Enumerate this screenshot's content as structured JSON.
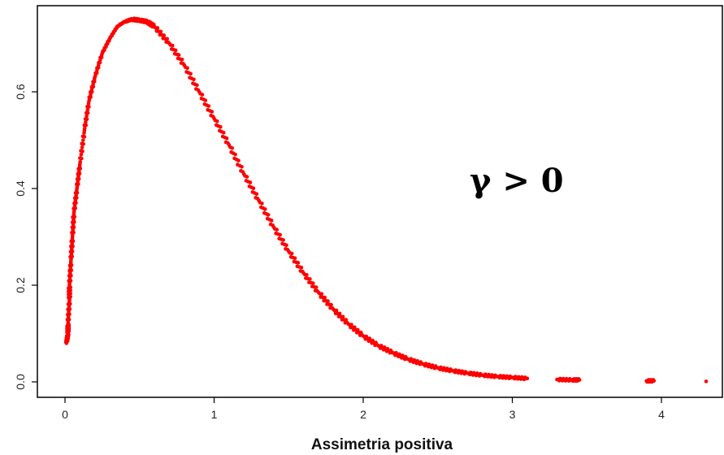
{
  "chart_data": {
    "type": "scatter",
    "title": "",
    "xlabel": "Assimetria positiva",
    "ylabel": "",
    "xlim": [
      -0.2,
      4.4
    ],
    "ylim": [
      -0.03,
      0.78
    ],
    "x_ticks": [
      0,
      1,
      2,
      3,
      4
    ],
    "x_tick_labels": [
      "0",
      "1",
      "2",
      "3",
      "4"
    ],
    "y_ticks": [
      0.0,
      0.2,
      0.4,
      0.6
    ],
    "y_tick_labels": [
      "0.0",
      "0.2",
      "0.4",
      "0.6"
    ],
    "annotation": "γ > 0",
    "grid": false,
    "legend": "none",
    "series": [
      {
        "color": "#ff0000",
        "x": [
          0.01,
          0.02,
          0.02,
          0.03,
          0.03,
          0.04,
          0.05,
          0.06,
          0.08,
          0.1,
          0.13,
          0.16,
          0.2,
          0.25,
          0.3,
          0.35,
          0.4,
          0.45,
          0.5,
          0.55,
          0.6,
          0.7,
          0.8,
          0.9,
          1.0,
          1.1,
          1.2,
          1.3,
          1.4,
          1.5,
          1.6,
          1.7,
          1.8,
          1.9,
          2.0,
          2.1,
          2.2,
          2.3,
          2.4,
          2.5,
          2.6,
          2.7,
          2.8,
          2.9,
          3.0,
          3.1,
          3.3,
          3.4,
          3.45,
          3.9,
          3.95,
          4.3
        ],
        "y": [
          0.08,
          0.1,
          0.12,
          0.17,
          0.2,
          0.25,
          0.3,
          0.35,
          0.4,
          0.45,
          0.52,
          0.58,
          0.63,
          0.68,
          0.71,
          0.735,
          0.745,
          0.75,
          0.748,
          0.745,
          0.735,
          0.7,
          0.655,
          0.6,
          0.545,
          0.49,
          0.43,
          0.375,
          0.32,
          0.27,
          0.225,
          0.185,
          0.15,
          0.12,
          0.095,
          0.075,
          0.06,
          0.047,
          0.037,
          0.029,
          0.023,
          0.018,
          0.014,
          0.011,
          0.009,
          0.007,
          0.005,
          0.004,
          0.004,
          0.002,
          0.002,
          0.001
        ]
      }
    ]
  }
}
